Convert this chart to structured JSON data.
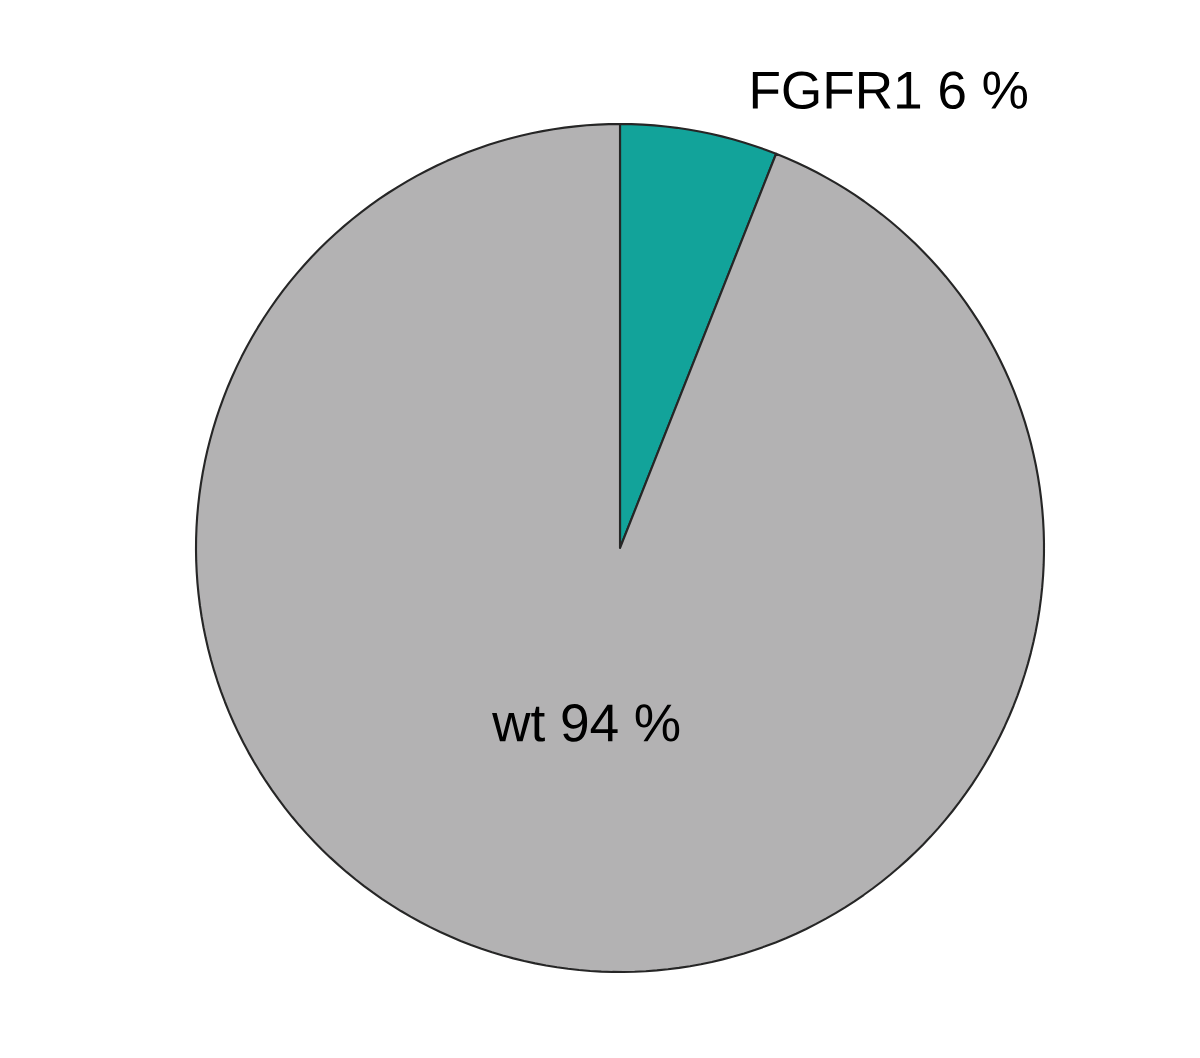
{
  "chart_data": {
    "type": "pie",
    "categories": [
      "FGFR1",
      "wt"
    ],
    "values": [
      6,
      94
    ],
    "value_labels": [
      "6 %",
      "94 %"
    ],
    "colors": [
      "#12a39a",
      "#b3b2b3"
    ]
  }
}
